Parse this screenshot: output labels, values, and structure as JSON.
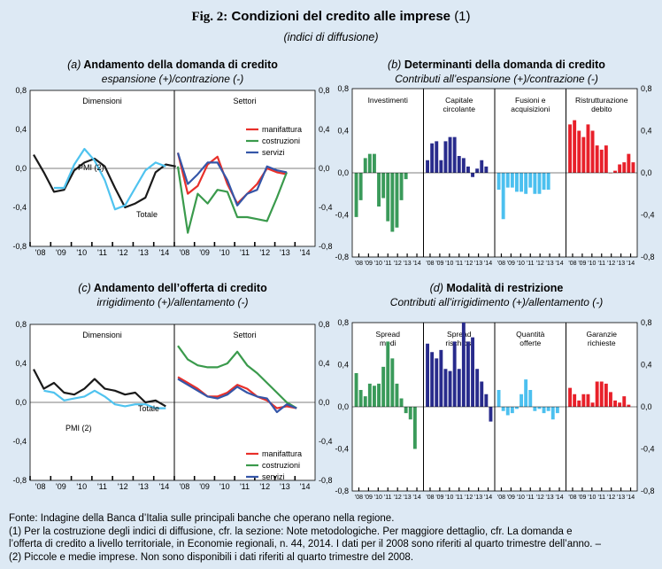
{
  "figure": {
    "number": "Fig. 2:",
    "title": "Condizioni del credito alle imprese",
    "title_note": "(1)",
    "subtitle": "(indici di diffusione)"
  },
  "panels": {
    "a": {
      "letter": "(a)",
      "title": "Andamento della domanda di credito",
      "subtitle": "espansione (+)/contrazione (-)"
    },
    "b": {
      "letter": "(b)",
      "title": "Determinanti della domanda di credito",
      "subtitle": "Contributi all’espansione (+)/contrazione (-)"
    },
    "c": {
      "letter": "(c)",
      "title": "Andamento dell’offerta di credito",
      "subtitle": "irrigidimento (+)/allentamento (-)"
    },
    "d": {
      "letter": "(d)",
      "title": "Modalità di restrizione",
      "subtitle": "Contributi all’irrigidimento (+)/allentamento (-)"
    }
  },
  "chart_data": [
    {
      "id": "a",
      "type": "line",
      "ylim": [
        -0.8,
        0.8
      ],
      "yticks": [
        "0,8",
        "0,4",
        "0,0",
        "-0,4",
        "-0,8"
      ],
      "left": {
        "label": "Dimensioni",
        "xticks": [
          "'08",
          "'09",
          "'10",
          "'11",
          "'12",
          "'13",
          "'14"
        ],
        "annotations": [
          "PMI (2)",
          "Totale"
        ],
        "series": [
          {
            "key": "totale",
            "color": "#1a1a1a",
            "start": 0,
            "values": [
              0.14,
              -0.04,
              -0.24,
              -0.22,
              -0.02,
              0.06,
              0.1,
              0.02,
              -0.2,
              -0.4,
              -0.36,
              -0.3,
              -0.04,
              0.04,
              0.02
            ]
          },
          {
            "key": "pmi",
            "color": "#4fc3ef",
            "start": 2,
            "values": [
              -0.2,
              -0.2,
              0.04,
              0.2,
              0.08,
              -0.12,
              -0.42,
              -0.38,
              -0.2,
              -0.02,
              0.06,
              0.02
            ]
          }
        ]
      },
      "right": {
        "label": "Settori",
        "xticks": [
          "'08",
          "'09",
          "'10",
          "'11",
          "'12",
          "'13",
          "'14"
        ],
        "legend": [
          "manifattura",
          "costruzioni",
          "servizi"
        ],
        "series": [
          {
            "name": "manifattura",
            "color": "#e8302a",
            "values": [
              0.16,
              -0.26,
              -0.18,
              0.04,
              0.12,
              -0.16,
              -0.36,
              -0.26,
              -0.16,
              0.0,
              -0.04,
              -0.06
            ]
          },
          {
            "name": "costruzioni",
            "color": "#3a9a4c",
            "values": [
              0.02,
              -0.66,
              -0.26,
              -0.36,
              -0.22,
              -0.24,
              -0.5,
              -0.5,
              -0.52,
              -0.54,
              -0.3,
              -0.04
            ]
          },
          {
            "name": "servizi",
            "color": "#3556a8",
            "values": [
              0.16,
              -0.16,
              -0.06,
              0.06,
              0.06,
              -0.12,
              -0.38,
              -0.26,
              -0.22,
              0.02,
              -0.02,
              -0.04
            ]
          }
        ]
      }
    },
    {
      "id": "b",
      "type": "bar",
      "ylim": [
        -0.8,
        0.8
      ],
      "yticks": [
        "0,8",
        "0,4",
        "0,0",
        "-0,4",
        "-0,8"
      ],
      "xticks": [
        "'08",
        "'09",
        "'10",
        "'11",
        "'12",
        "'13",
        "'14"
      ],
      "groups": [
        {
          "label": [
            "Investimenti"
          ],
          "color": "#3a9a5a",
          "values": [
            -0.42,
            -0.26,
            0.14,
            0.18,
            0.18,
            -0.32,
            -0.24,
            -0.46,
            -0.56,
            -0.52,
            -0.26,
            -0.06
          ]
        },
        {
          "label": [
            "Capitale",
            "circolante"
          ],
          "color": "#282b8c",
          "values": [
            0.12,
            0.28,
            0.3,
            0.12,
            0.3,
            0.34,
            0.34,
            0.16,
            0.14,
            0.06,
            -0.04,
            0.04,
            0.12,
            0.06
          ]
        },
        {
          "label": [
            "Fusioni e",
            "acquisizioni"
          ],
          "color": "#4cc0ef",
          "values": [
            -0.16,
            -0.44,
            -0.14,
            -0.14,
            -0.18,
            -0.18,
            -0.2,
            -0.14,
            -0.2,
            -0.2,
            -0.16,
            -0.16
          ]
        },
        {
          "label": [
            "Ristrutturazione",
            "debito"
          ],
          "color": "#e8202a",
          "values": [
            0.46,
            0.5,
            0.4,
            0.34,
            0.46,
            0.4,
            0.26,
            0.22,
            0.26,
            0.0,
            0.02,
            0.08,
            0.1,
            0.18,
            0.1
          ]
        }
      ]
    },
    {
      "id": "c",
      "type": "line",
      "ylim": [
        -0.8,
        0.8
      ],
      "yticks": [
        "0,8",
        "0,4",
        "0,0",
        "-0,4",
        "-0,8"
      ],
      "left": {
        "label": "Dimensioni",
        "xticks": [
          "'08",
          "'09",
          "'10",
          "'11",
          "'12",
          "'13",
          "'14"
        ],
        "annotations": [
          "Totale",
          "PMI (2)"
        ],
        "series": [
          {
            "key": "totale",
            "color": "#1a1a1a",
            "start": 0,
            "values": [
              0.34,
              0.14,
              0.2,
              0.1,
              0.08,
              0.14,
              0.24,
              0.14,
              0.12,
              0.08,
              0.1,
              0.0,
              0.02,
              -0.04
            ]
          },
          {
            "key": "pmi",
            "color": "#4fc3ef",
            "start": 1,
            "values": [
              0.12,
              0.1,
              0.02,
              0.04,
              0.06,
              0.12,
              0.06,
              -0.02,
              -0.04,
              -0.02,
              -0.02,
              -0.06,
              -0.06
            ]
          }
        ]
      },
      "right": {
        "label": "Settori",
        "xticks": [
          "'08",
          "'09",
          "'10",
          "'11",
          "'12",
          "'13",
          "'14"
        ],
        "legend": [
          "manifattura",
          "costruzioni",
          "servizi"
        ],
        "series": [
          {
            "name": "manifattura",
            "color": "#e8302a",
            "values": [
              0.26,
              0.2,
              0.14,
              0.06,
              0.06,
              0.1,
              0.18,
              0.14,
              0.06,
              0.02,
              -0.06,
              -0.04,
              -0.06
            ]
          },
          {
            "name": "costruzioni",
            "color": "#3a9a4c",
            "values": [
              0.58,
              0.44,
              0.38,
              0.36,
              0.36,
              0.4,
              0.52,
              0.38,
              0.3,
              0.2,
              0.1,
              0.0,
              -0.06
            ]
          },
          {
            "name": "servizi",
            "color": "#3556a8",
            "values": [
              0.24,
              0.18,
              0.12,
              0.06,
              0.04,
              0.08,
              0.16,
              0.1,
              0.06,
              0.04,
              -0.1,
              -0.02,
              -0.06
            ]
          }
        ]
      }
    },
    {
      "id": "d",
      "type": "bar",
      "ylim": [
        -0.8,
        0.8
      ],
      "yticks": [
        "0,8",
        "0,4",
        "0,0",
        "-0,4",
        "-0,8"
      ],
      "xticks": [
        "'08",
        "'09",
        "'10",
        "'11",
        "'12",
        "'13",
        "'14"
      ],
      "groups": [
        {
          "label": [
            "Spread",
            "medi"
          ],
          "color": "#3a9a5a",
          "values": [
            0.32,
            0.16,
            0.1,
            0.22,
            0.2,
            0.22,
            0.38,
            0.62,
            0.46,
            0.22,
            0.08,
            -0.06,
            -0.12,
            -0.4
          ]
        },
        {
          "label": [
            "Spread",
            "rischiosi"
          ],
          "color": "#282b8c",
          "values": [
            0.6,
            0.52,
            0.46,
            0.54,
            0.36,
            0.34,
            0.62,
            0.36,
            0.8,
            0.62,
            0.66,
            0.36,
            0.24,
            0.12,
            -0.14
          ]
        },
        {
          "label": [
            "Quantità",
            "offerte"
          ],
          "color": "#4cc0ef",
          "values": [
            0.16,
            -0.04,
            -0.08,
            -0.06,
            -0.02,
            0.12,
            0.26,
            0.16,
            -0.04,
            -0.02,
            -0.06,
            -0.04,
            -0.12,
            -0.06
          ]
        },
        {
          "label": [
            "Garanzie",
            "richieste"
          ],
          "color": "#e8202a",
          "values": [
            0.18,
            0.12,
            0.06,
            0.12,
            0.12,
            0.04,
            0.24,
            0.24,
            0.22,
            0.14,
            0.06,
            0.04,
            0.1,
            0.02
          ]
        }
      ]
    }
  ],
  "notes": [
    "Fonte: Indagine della Banca d’Italia sulle principali banche che operano nella regione.",
    "(1) Per la costruzione degli indici di diffusione, cfr. la sezione: Note metodologiche. Per maggiore dettaglio, cfr. La domanda e",
    "l’offerta di credito a livello territoriale, in Economie regionali, n. 44, 2014. I dati per il 2008 sono riferiti al quarto trimestre dell’anno. –",
    "(2) Piccole e medie imprese. Non sono disponibili i dati riferiti al quarto trimestre del 2008."
  ]
}
